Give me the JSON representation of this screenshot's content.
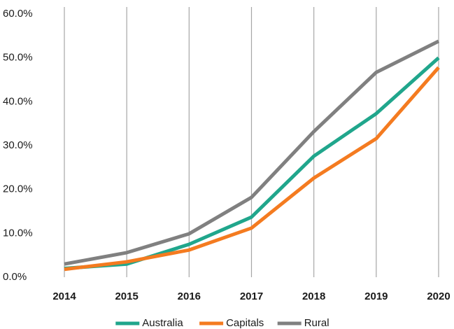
{
  "chart_data": {
    "type": "line",
    "categories": [
      "2014",
      "2015",
      "2016",
      "2017",
      "2018",
      "2019",
      "2020"
    ],
    "series": [
      {
        "name": "Australia",
        "color": "#20a68c",
        "values": [
          2.0,
          3.0,
          7.5,
          13.7,
          27.6,
          37.3,
          50.0
        ]
      },
      {
        "name": "Capitals",
        "color": "#f47b20",
        "values": [
          1.8,
          3.5,
          6.2,
          11.2,
          22.6,
          31.6,
          47.8
        ]
      },
      {
        "name": "Rural",
        "color": "#808080",
        "values": [
          3.0,
          5.6,
          9.9,
          18.2,
          33.2,
          46.7,
          53.8
        ]
      }
    ],
    "ylim": [
      0,
      60
    ],
    "yticks": [
      {
        "value": 0,
        "label": "0.0%"
      },
      {
        "value": 10,
        "label": "10.0%"
      },
      {
        "value": 20,
        "label": "20.0%"
      },
      {
        "value": 30,
        "label": "30.0%"
      },
      {
        "value": 40,
        "label": "40.0%"
      },
      {
        "value": 50,
        "label": "50.0%"
      },
      {
        "value": 60,
        "label": "60.0%"
      }
    ],
    "grid": true,
    "legend": "bottom"
  }
}
